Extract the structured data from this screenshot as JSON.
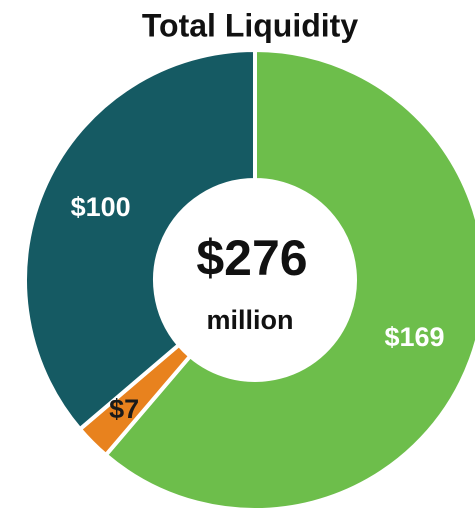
{
  "chart_data": {
    "type": "donut",
    "title": "Total Liquidity",
    "center_label": "$276",
    "center_sublabel": "million",
    "categories": [
      null,
      null,
      null
    ],
    "values": [
      169,
      7,
      100
    ],
    "value_labels": [
      "$169",
      "$7",
      "$100"
    ],
    "colors": [
      "#6dbe4b",
      "#e8821e",
      "#155a63"
    ],
    "label_colors": [
      "#ffffff",
      "#1a1a1a",
      "#ffffff"
    ]
  }
}
